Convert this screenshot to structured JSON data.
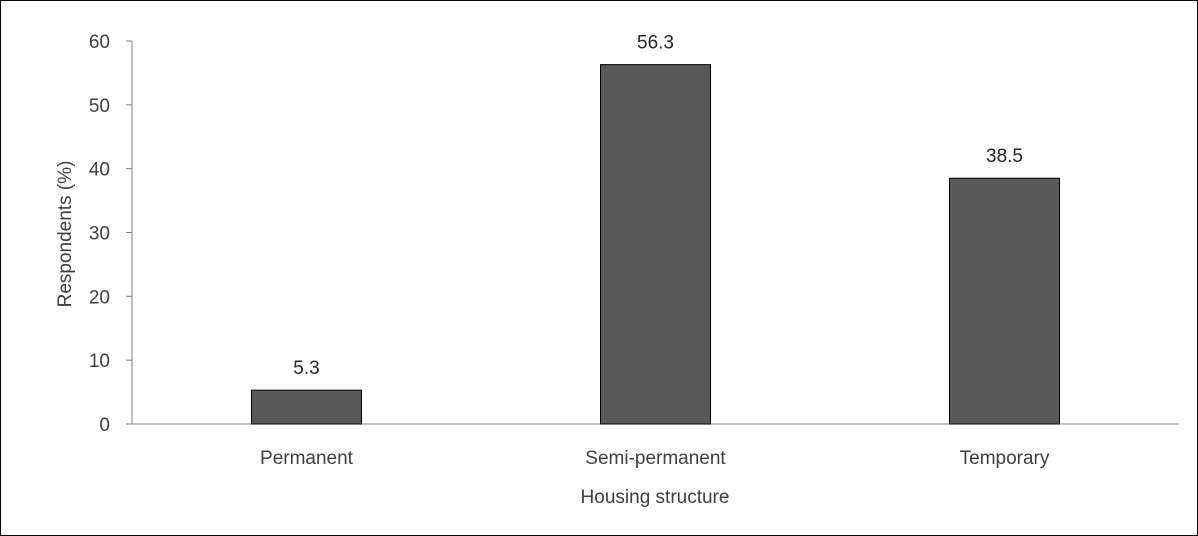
{
  "chart_data": {
    "type": "bar",
    "categories": [
      "Permanent",
      "Semi-permanent",
      "Temporary"
    ],
    "values": [
      5.3,
      56.3,
      38.5
    ],
    "value_labels": [
      "5.3",
      "56.3",
      "38.5"
    ],
    "title": "",
    "xlabel": "Housing structure",
    "ylabel": "Respondents (%)",
    "ylim": [
      0,
      60
    ],
    "yticks": [
      0,
      10,
      20,
      30,
      40,
      50,
      60
    ],
    "grid": false,
    "legend": "none",
    "bar_color": "#595959",
    "bar_edge_color": "#000000"
  }
}
